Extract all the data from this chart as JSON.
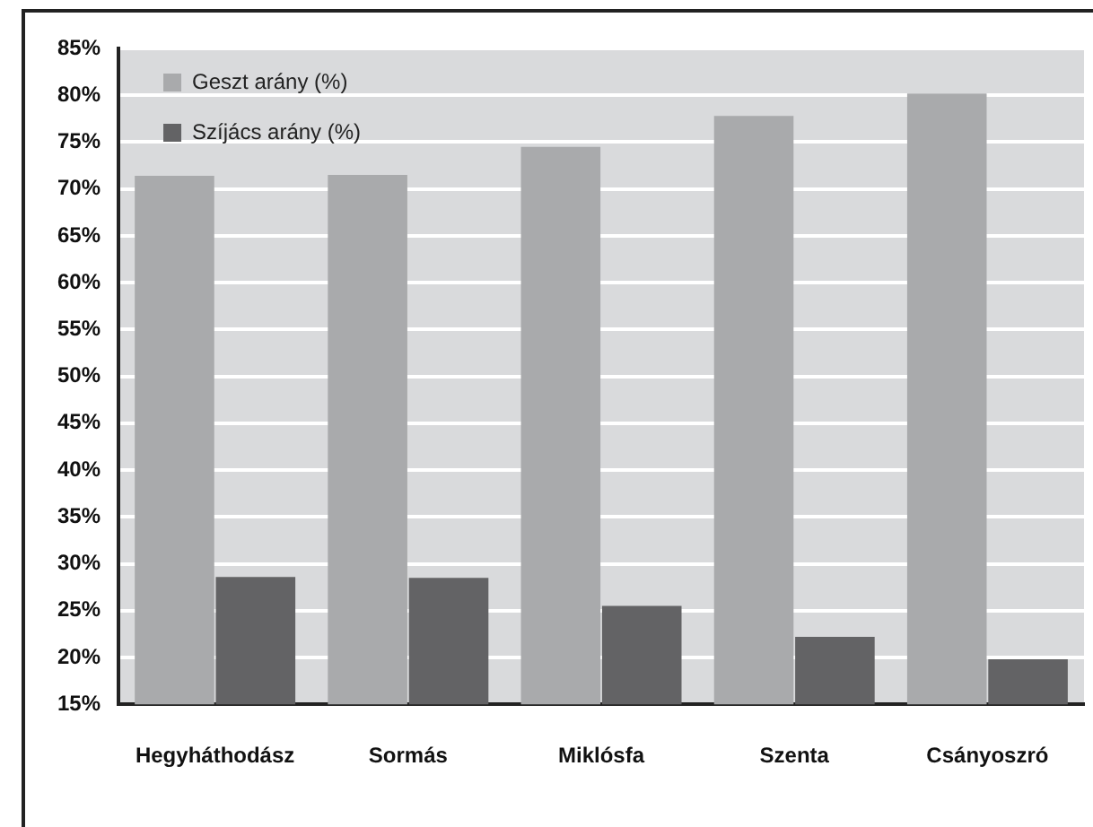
{
  "chart_data": {
    "type": "bar",
    "categories": [
      "Hegyháthodász",
      "Sormás",
      "Miklósfa",
      "Szenta",
      "Csányoszró"
    ],
    "series": [
      {
        "name": "Geszt arány (%)",
        "color": "#a9aaac",
        "values": [
          71.4,
          71.5,
          74.5,
          77.8,
          80.2
        ]
      },
      {
        "name": "Szíjács arány (%)",
        "color": "#636365",
        "values": [
          28.6,
          28.5,
          25.5,
          22.2,
          19.8
        ]
      }
    ],
    "ylim": [
      15,
      85
    ],
    "yticks": [
      {
        "value": 15,
        "label": "15%"
      },
      {
        "value": 20,
        "label": "20%"
      },
      {
        "value": 25,
        "label": "25%"
      },
      {
        "value": 30,
        "label": "30%"
      },
      {
        "value": 35,
        "label": "35%"
      },
      {
        "value": 40,
        "label": "40%"
      },
      {
        "value": 45,
        "label": "45%"
      },
      {
        "value": 50,
        "label": "50%"
      },
      {
        "value": 55,
        "label": "55%"
      },
      {
        "value": 60,
        "label": "60%"
      },
      {
        "value": 65,
        "label": "65%"
      },
      {
        "value": 70,
        "label": "70%"
      },
      {
        "value": 75,
        "label": "75%"
      },
      {
        "value": 80,
        "label": "80%"
      },
      {
        "value": 85,
        "label": "85%"
      }
    ],
    "grid": "y",
    "legend": "top left"
  }
}
